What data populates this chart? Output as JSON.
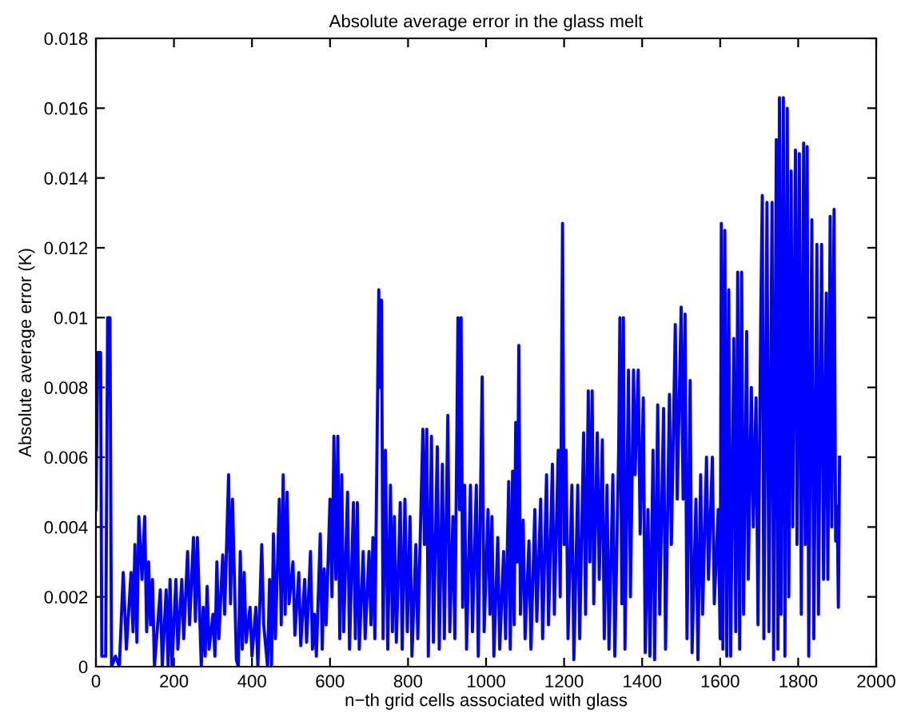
{
  "chart_data": {
    "type": "line",
    "title": "Absolute average error in the glass melt",
    "xlabel": "n−th grid cells associated with glass",
    "ylabel": "Absolute average error (K)",
    "xlim": [
      0,
      2000
    ],
    "ylim": [
      0,
      0.018
    ],
    "xticks": [
      0,
      200,
      400,
      600,
      800,
      1000,
      1200,
      1400,
      1600,
      1800,
      2000
    ],
    "yticks": [
      0,
      0.002,
      0.004,
      0.006,
      0.008,
      0.01,
      0.012,
      0.014,
      0.016,
      0.018
    ],
    "grid": false,
    "legend": false,
    "series": [
      {
        "color": "#0000ff",
        "x": [
          0,
          5,
          12,
          15,
          25,
          30,
          36,
          40,
          50,
          60,
          70,
          78,
          90,
          95,
          100,
          105,
          110,
          118,
          125,
          130,
          135,
          140,
          145,
          150,
          165,
          170,
          180,
          185,
          190,
          195,
          205,
          210,
          220,
          225,
          235,
          240,
          250,
          255,
          260,
          270,
          275,
          280,
          285,
          290,
          300,
          305,
          310,
          315,
          325,
          330,
          340,
          345,
          350,
          360,
          365,
          370,
          375,
          380,
          385,
          395,
          400,
          410,
          415,
          425,
          430,
          440,
          445,
          450,
          455,
          460,
          470,
          475,
          480,
          485,
          490,
          495,
          505,
          510,
          520,
          525,
          535,
          540,
          550,
          555,
          560,
          565,
          575,
          580,
          585,
          590,
          600,
          605,
          610,
          615,
          620,
          625,
          630,
          635,
          645,
          650,
          660,
          665,
          670,
          675,
          685,
          690,
          700,
          705,
          710,
          715,
          725,
          728,
          732,
          736,
          742,
          748,
          755,
          760,
          765,
          770,
          780,
          785,
          792,
          798,
          805,
          810,
          820,
          825,
          838,
          842,
          848,
          852,
          860,
          865,
          875,
          880,
          888,
          893,
          902,
          907,
          915,
          920,
          928,
          932,
          936,
          940,
          945,
          950,
          960,
          965,
          975,
          980,
          990,
          995,
          1005,
          1010,
          1015,
          1020,
          1030,
          1035,
          1045,
          1050,
          1058,
          1062,
          1068,
          1072,
          1076,
          1080,
          1084,
          1088,
          1095,
          1100,
          1110,
          1115,
          1125,
          1130,
          1140,
          1145,
          1155,
          1160,
          1170,
          1175,
          1185,
          1190,
          1196,
          1200,
          1205,
          1210,
          1220,
          1225,
          1235,
          1240,
          1250,
          1255,
          1262,
          1266,
          1272,
          1276,
          1285,
          1290,
          1298,
          1303,
          1310,
          1315,
          1325,
          1330,
          1340,
          1343,
          1348,
          1352,
          1356,
          1365,
          1370,
          1378,
          1382,
          1390,
          1395,
          1403,
          1408,
          1415,
          1420,
          1428,
          1432,
          1440,
          1445,
          1455,
          1460,
          1470,
          1475,
          1485,
          1490,
          1500,
          1505,
          1510,
          1515,
          1523,
          1528,
          1538,
          1543,
          1550,
          1555,
          1565,
          1570,
          1580,
          1585,
          1595,
          1600,
          1603,
          1607,
          1612,
          1617,
          1622,
          1627,
          1635,
          1640,
          1645,
          1650,
          1655,
          1660,
          1668,
          1672,
          1680,
          1685,
          1692,
          1697,
          1704,
          1708,
          1712,
          1720,
          1725,
          1733,
          1737,
          1744,
          1748,
          1752,
          1756,
          1762,
          1766,
          1772,
          1776,
          1782,
          1786,
          1793,
          1797,
          1803,
          1808,
          1814,
          1818,
          1823,
          1827,
          1835,
          1840,
          1848,
          1852,
          1860,
          1865,
          1872,
          1876,
          1882,
          1886,
          1892,
          1896,
          1900,
          1903,
          1906
        ],
        "values": [
          0.0045,
          0.009,
          0.009,
          0.0003,
          0.0003,
          0.01,
          0.01,
          0,
          0.0003,
          0,
          0.0027,
          0.0005,
          0.0027,
          0.001,
          0.0035,
          0.0007,
          0.0043,
          0.0025,
          0.0043,
          0.001,
          0.003,
          0.0012,
          0.0025,
          0,
          0.0022,
          0,
          0.0022,
          0,
          0.0025,
          0,
          0.0025,
          0.0005,
          0.0025,
          0.0008,
          0.0033,
          0.0012,
          0.0037,
          0.0013,
          0.0037,
          0,
          0.0017,
          0.0003,
          0.0023,
          0.0005,
          0.0015,
          0.0003,
          0.003,
          0.0008,
          0.0032,
          0.0015,
          0.0055,
          0.0018,
          0.0048,
          0.0002,
          0,
          0.0033,
          0.0005,
          0.0027,
          0.0007,
          0.0017,
          0.0003,
          0.0017,
          0,
          0.0035,
          0.0012,
          0,
          0.0025,
          0,
          0.0038,
          0.0008,
          0.0048,
          0.0012,
          0.0055,
          0.0015,
          0.005,
          0.0018,
          0.003,
          0.0009,
          0.0027,
          0.0006,
          0.0025,
          0.0007,
          0.0033,
          0.0005,
          0.0015,
          0.0003,
          0.0038,
          0.0005,
          0.0028,
          0.0012,
          0.0048,
          0.002,
          0.0066,
          0.0025,
          0.0066,
          0.0008,
          0.0055,
          0.001,
          0.005,
          0.0005,
          0.0047,
          0.0008,
          0.0047,
          0.0005,
          0.0033,
          0.0008,
          0.0033,
          0.0012,
          0.0037,
          0.0008,
          0.0108,
          0.008,
          0.0105,
          0.0008,
          0.0062,
          0.0005,
          0.0052,
          0.001,
          0.0043,
          0.0007,
          0.0047,
          0.0005,
          0.0048,
          0.001,
          0.0043,
          0.0003,
          0.0035,
          0.0008,
          0.0068,
          0.0035,
          0.0068,
          0.0003,
          0.0066,
          0.0007,
          0.0063,
          0.0005,
          0.0058,
          0.0008,
          0.0072,
          0.001,
          0.0043,
          0.0008,
          0.01,
          0.0045,
          0.01,
          0.0017,
          0.0052,
          0.0005,
          0.0052,
          0.001,
          0.0052,
          0.0003,
          0.0083,
          0.001,
          0.0045,
          0.0015,
          0.0043,
          0.0003,
          0.0037,
          0.0005,
          0.0033,
          0.0008,
          0.0053,
          0.0005,
          0.0056,
          0.0012,
          0.007,
          0.003,
          0.0092,
          0.0015,
          0.0042,
          0.0008,
          0.0036,
          0.0005,
          0.0045,
          0.0013,
          0.0048,
          0.0008,
          0.0055,
          0.0012,
          0.0058,
          0.0015,
          0.0062,
          0.002,
          0.0127,
          0.0035,
          0.0062,
          0.0008,
          0.0052,
          0.0002,
          0.0052,
          0.0008,
          0.0067,
          0.0015,
          0.0079,
          0.003,
          0.0079,
          0.0018,
          0.0067,
          0.0025,
          0.0065,
          0.0008,
          0.0052,
          0.0005,
          0.0055,
          0.0003,
          0.0063,
          0.01,
          0.0018,
          0.01,
          0.0005,
          0.0085,
          0.002,
          0.0085,
          0.0055,
          0.0085,
          0.0038,
          0.0077,
          0.0004,
          0.0045,
          0.0003,
          0.0062,
          0.0002,
          0.0075,
          0.0015,
          0.0074,
          0.0005,
          0.0078,
          0.0035,
          0.0098,
          0.0048,
          0.0103,
          0.0048,
          0.0101,
          0.0008,
          0.0082,
          0.0004,
          0.0048,
          0.0002,
          0.0055,
          0.0015,
          0.006,
          0.0025,
          0.006,
          0.0018,
          0.0045,
          0.0008,
          0.0127,
          0.0005,
          0.0125,
          0.0003,
          0.0108,
          0.0003,
          0.0094,
          0.001,
          0.0113,
          0.0005,
          0.0113,
          0.0015,
          0.0096,
          0.0025,
          0.008,
          0.004,
          0.0077,
          0.0012,
          0.01,
          0.0135,
          0.0008,
          0.0133,
          0.001,
          0.0133,
          0.0002,
          0.0151,
          0.0005,
          0.0163,
          0.0015,
          0.0163,
          0.0003,
          0.016,
          0.002,
          0.0142,
          0.004,
          0.0148,
          0.0035,
          0.0147,
          0.0015,
          0.015,
          0.0035,
          0.0149,
          0.0003,
          0.0128,
          0.0008,
          0.0121,
          0.0015,
          0.0121,
          0.0025,
          0.0107,
          0.0025,
          0.0129,
          0.004,
          0.0131,
          0.0036,
          0.0046,
          0.0017,
          0.006
        ]
      }
    ]
  }
}
